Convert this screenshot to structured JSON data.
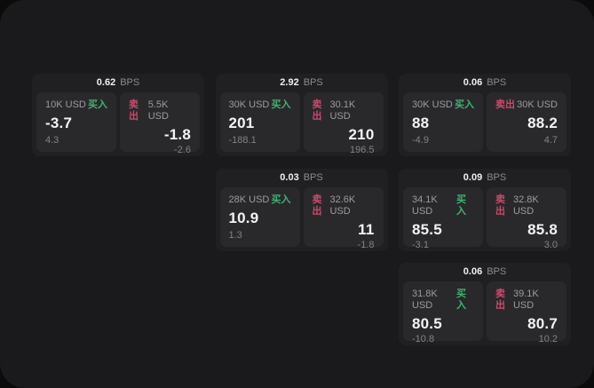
{
  "labels": {
    "bps": "BPS",
    "buy": "买入",
    "sell": "卖出"
  },
  "colors": {
    "buy_green": "#3fb46b",
    "sell_red": "#cb4a6c",
    "outer_bg": "#0b0b0c",
    "panel_bg": "#1a1a1c",
    "card_bg": "#202023",
    "pane_bg": "#29292c"
  },
  "cards": [
    {
      "bps": "0.62",
      "buy": {
        "amount": "10K USD",
        "value": "-3.7",
        "delta": "4.3"
      },
      "sell": {
        "amount": "5.5K USD",
        "value": "-1.8",
        "delta": "-2.6"
      }
    },
    {
      "bps": "2.92",
      "buy": {
        "amount": "30K USD",
        "value": "201",
        "delta": "-188.1"
      },
      "sell": {
        "amount": "30.1K USD",
        "value": "210",
        "delta": "196.5"
      }
    },
    {
      "bps": "0.06",
      "buy": {
        "amount": "30K USD",
        "value": "88",
        "delta": "-4.9"
      },
      "sell": {
        "amount": "30K USD",
        "value": "88.2",
        "delta": "4.7"
      }
    },
    {
      "bps": "0.03",
      "buy": {
        "amount": "28K USD",
        "value": "10.9",
        "delta": "1.3"
      },
      "sell": {
        "amount": "32.6K USD",
        "value": "11",
        "delta": "-1.8"
      }
    },
    {
      "bps": "0.09",
      "buy": {
        "amount": "34.1K USD",
        "value": "85.5",
        "delta": "-3.1"
      },
      "sell": {
        "amount": "32.8K USD",
        "value": "85.8",
        "delta": "3.0"
      }
    },
    {
      "bps": "0.06",
      "buy": {
        "amount": "31.8K USD",
        "value": "80.5",
        "delta": "-10.8"
      },
      "sell": {
        "amount": "39.1K USD",
        "value": "80.7",
        "delta": "10.2"
      }
    }
  ]
}
